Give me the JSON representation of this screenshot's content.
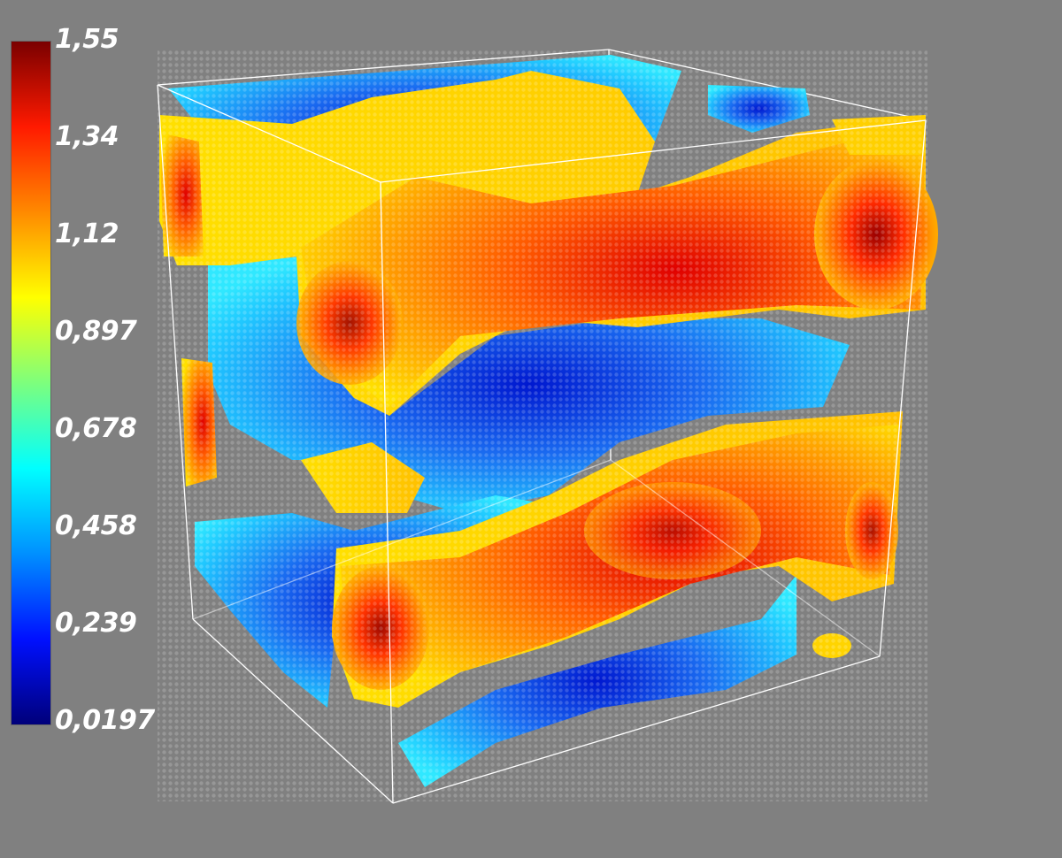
{
  "colorbar": {
    "ticks": [
      "1,55",
      "1,34",
      "1,12",
      "0,897",
      "0,678",
      "0,458",
      "0,239",
      "0,0197"
    ],
    "min_value": 0.0197,
    "max_value": 1.55,
    "colormap": "jet",
    "colors": [
      "#7a0000",
      "#ff1a00",
      "#ff8a00",
      "#ffff00",
      "#7dff7d",
      "#00ffff",
      "#0090ff",
      "#0010ff",
      "#00007a"
    ]
  },
  "scene": {
    "background_color": "#808080",
    "bounding_box_color": "#ffffff",
    "particle_colors": {
      "high": "#ff2a00",
      "mid_high": "#ffd400",
      "mid": "#ffff00",
      "low": "#20c8ff",
      "very_low": "#1040e0"
    }
  }
}
